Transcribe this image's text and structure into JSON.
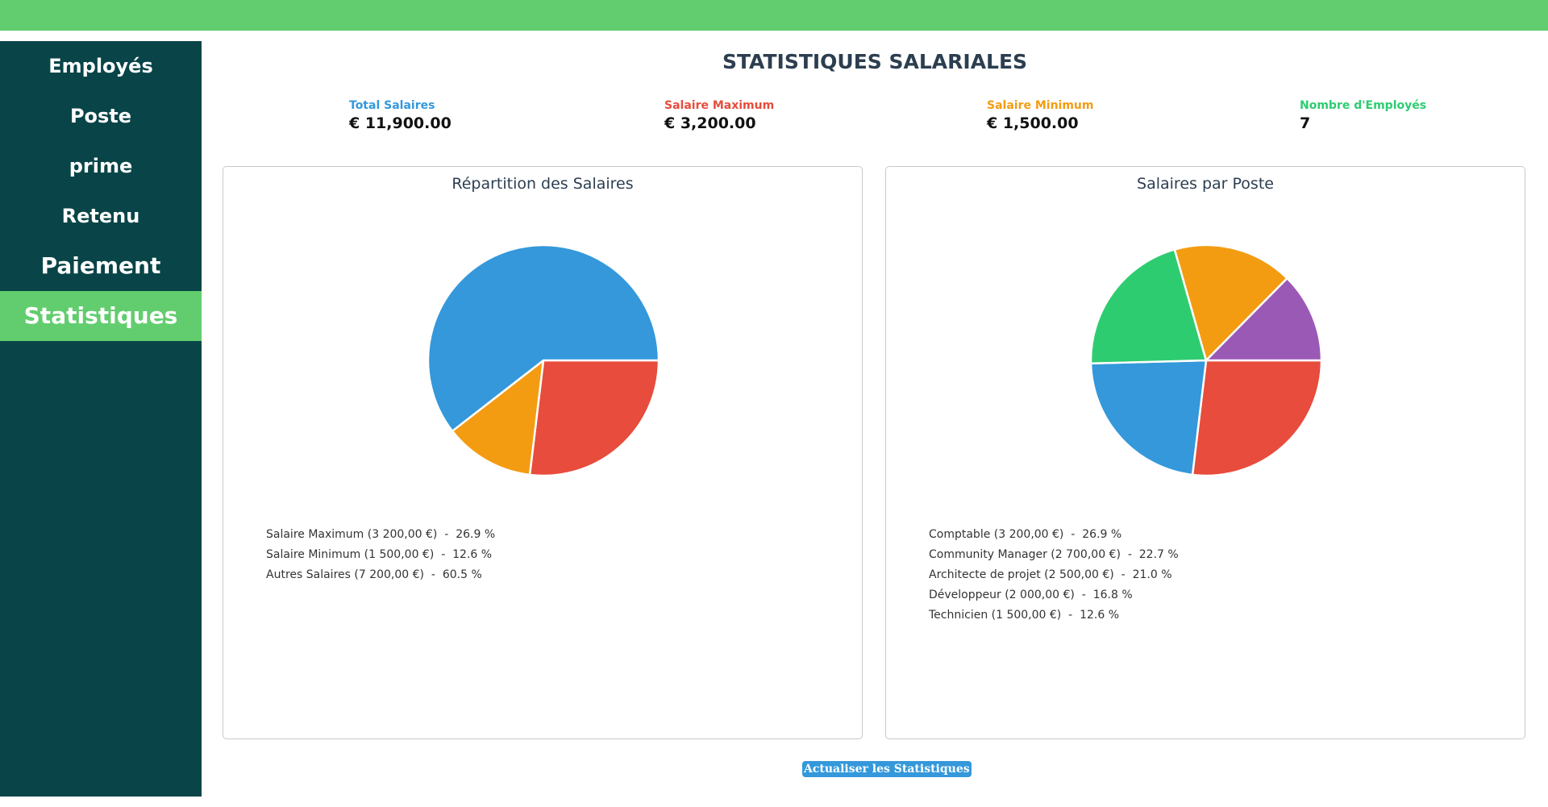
{
  "nav": {
    "items": [
      {
        "label": "Employés",
        "size": "normal",
        "active": false
      },
      {
        "label": "Poste",
        "size": "normal",
        "active": false
      },
      {
        "label": "prime",
        "size": "normal",
        "active": false
      },
      {
        "label": "Retenu",
        "size": "normal",
        "active": false
      },
      {
        "label": "Paiement",
        "size": "large",
        "active": false
      },
      {
        "label": "Statistiques",
        "size": "large",
        "active": true
      }
    ]
  },
  "page": {
    "title": "STATISTIQUES SALARIALES"
  },
  "kpis": [
    {
      "label": "Total Salaires",
      "value": "€ 11,900.00",
      "color": "#3498db"
    },
    {
      "label": "Salaire Maximum",
      "value": "€ 3,200.00",
      "color": "#e74c3c"
    },
    {
      "label": "Salaire Minimum",
      "value": "€ 1,500.00",
      "color": "#f39c12"
    },
    {
      "label": "Nombre d'Employés",
      "value": "7",
      "color": "#2ecc71"
    }
  ],
  "chart_data": [
    {
      "type": "pie",
      "title": "Répartition des Salaires",
      "slices": [
        {
          "label": "Salaire Maximum",
          "amount": "3 200,00 €",
          "value": 3200,
          "percent": "26.9 %",
          "color": "#e74c3c"
        },
        {
          "label": "Salaire Minimum",
          "amount": "1 500,00 €",
          "value": 1500,
          "percent": "12.6 %",
          "color": "#f39c12"
        },
        {
          "label": "Autres Salaires",
          "amount": "7 200,00 €",
          "value": 7200,
          "percent": "60.5 %",
          "color": "#3498db"
        }
      ]
    },
    {
      "type": "pie",
      "title": "Salaires par Poste",
      "slices": [
        {
          "label": "Comptable",
          "amount": "3 200,00 €",
          "value": 3200,
          "percent": "26.9 %",
          "color": "#e74c3c"
        },
        {
          "label": "Community Manager",
          "amount": "2 700,00 €",
          "value": 2700,
          "percent": "22.7 %",
          "color": "#3498db"
        },
        {
          "label": "Architecte de projet",
          "amount": "2 500,00 €",
          "value": 2500,
          "percent": "21.0 %",
          "color": "#2ecc71"
        },
        {
          "label": "Développeur",
          "amount": "2 000,00 €",
          "value": 2000,
          "percent": "16.8 %",
          "color": "#f39c12"
        },
        {
          "label": "Technicien",
          "amount": "1 500,00 €",
          "value": 1500,
          "percent": "12.6 %",
          "color": "#9b59b6"
        }
      ]
    }
  ],
  "actions": {
    "refresh_label": "Actualiser les Statistiques"
  }
}
